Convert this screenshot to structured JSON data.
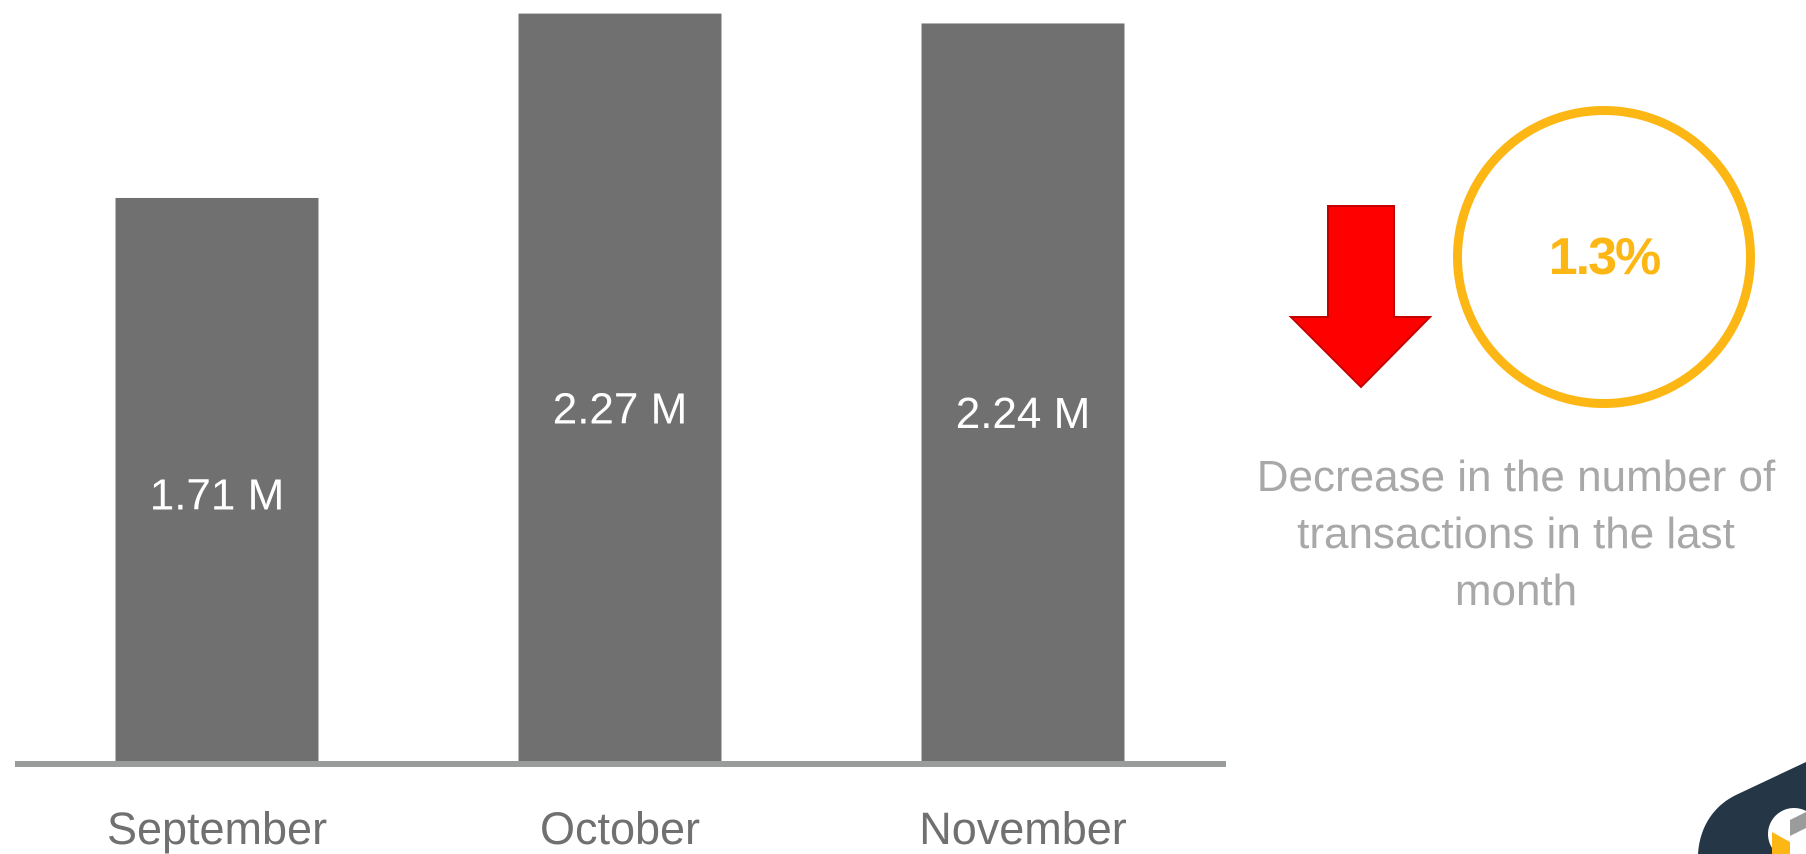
{
  "chart_data": {
    "type": "bar",
    "categories": [
      "September",
      "October",
      "November"
    ],
    "values": [
      1.71,
      2.27,
      2.24
    ],
    "value_labels": [
      "1.71 M",
      "2.27 M",
      "2.24 M"
    ],
    "ylim": [
      0,
      2.29
    ],
    "grid": false,
    "legend": "none",
    "title": "",
    "xlabel": "",
    "ylabel": "",
    "colors": {
      "bar": "#6F706F",
      "baseline": "#9A9C9B",
      "bar_label": "#ffffff",
      "category_label": "#6F706F"
    }
  },
  "kpi": {
    "value": "1.3%",
    "caption": "Decrease in the number of transactions in the last month",
    "direction": "down",
    "icon": "arrow-down-icon",
    "colors": {
      "ring": "#FDB714",
      "value": "#FDB714",
      "arrow": "#FF0000",
      "caption": "#a8a8a8"
    }
  },
  "logo": {
    "icon": "brand-logo-icon",
    "colors": {
      "badge": "#253746",
      "mark": "#FDB714"
    }
  }
}
